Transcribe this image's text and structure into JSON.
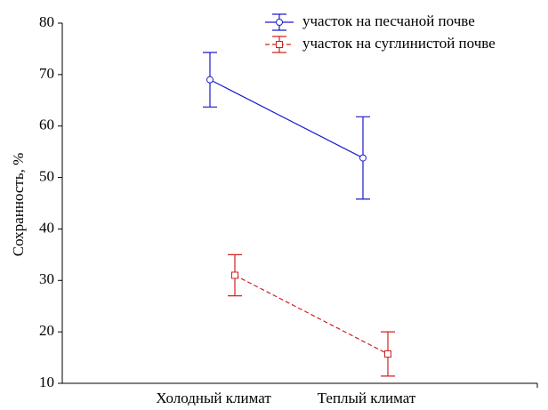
{
  "chart_data": {
    "type": "line",
    "ylabel": "Сохранность, %",
    "categories": [
      "Холодный климат",
      "Теплый климат"
    ],
    "series": [
      {
        "name": "участок на песчаной почве",
        "color": "#1a1acc",
        "marker": "circle",
        "dashed": false,
        "values": [
          69,
          53.8
        ],
        "errors": [
          5.3,
          8
        ]
      },
      {
        "name": "участок на суглинистой почве",
        "color": "#d42020",
        "marker": "square",
        "dashed": true,
        "values": [
          31,
          15.7
        ],
        "errors": [
          4,
          4.3
        ]
      }
    ],
    "ylim": [
      10,
      80
    ],
    "yticks": [
      10,
      20,
      30,
      40,
      50,
      60,
      70,
      80
    ]
  }
}
